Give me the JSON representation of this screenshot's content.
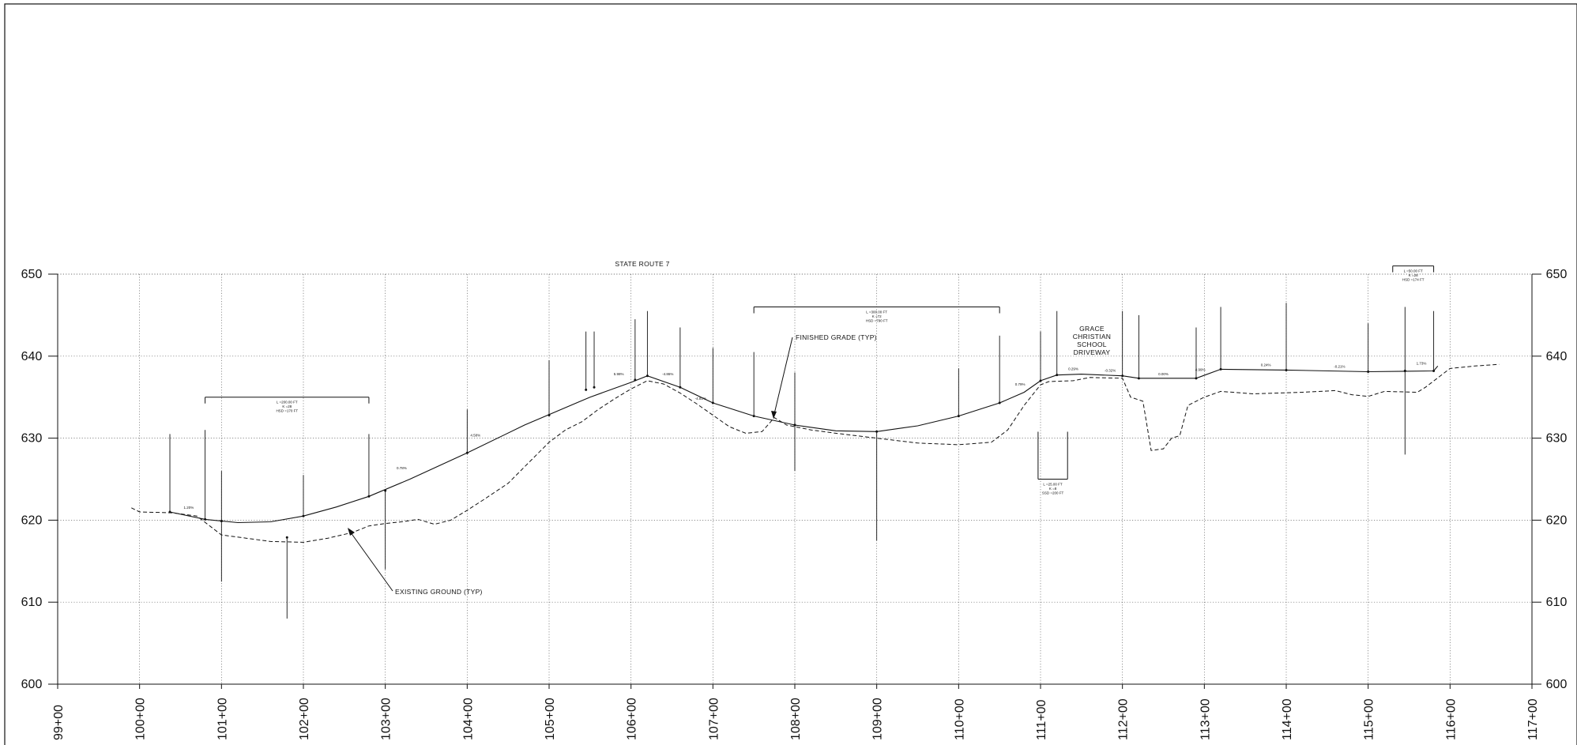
{
  "title": "STATE ROUTE 7",
  "colors": {
    "line": "#111111",
    "grid": "#555555",
    "background": "#ffffff"
  },
  "elevation_labels": [
    "650",
    "640",
    "630",
    "620",
    "610",
    "600"
  ],
  "station_labels": [
    "99+00",
    "100+00",
    "101+00",
    "102+00",
    "103+00",
    "104+00",
    "105+00",
    "106+00",
    "107+00",
    "108+00",
    "109+00",
    "110+00",
    "111+00",
    "112+00",
    "113+00",
    "114+00",
    "115+00",
    "116+00",
    "117+00"
  ],
  "annotations": {
    "finished_grade": "FINISHED GRADE (TYP)",
    "existing_ground": "EXISTING GROUND (TYP)",
    "driveway": [
      "GRACE",
      "CHRISTIAN",
      "SCHOOL",
      "DRIVEWAY"
    ]
  },
  "vertical_curves": [
    {
      "id": "vc-101",
      "text": [
        "L =200.00 FT",
        "K =28",
        "HSD =170 FT"
      ]
    },
    {
      "id": "vc-108",
      "text": [
        "L =300.00 FT",
        "K =72",
        "HSD =790 FT"
      ]
    },
    {
      "id": "vc-111",
      "text": [
        "L =25.00 FT",
        "K =8",
        "SSD =200 FT"
      ]
    },
    {
      "id": "vc-115",
      "text": [
        "L =50.00 FT",
        "K =28",
        "HSD =174 FT"
      ]
    }
  ],
  "grades": [
    "1.20%",
    "0.78%",
    "5.98%",
    "-4.86%",
    "-4.81%",
    "4.58%",
    "0.79%",
    "0.29%",
    "-0.32%",
    "0.00%",
    "4.99%",
    "0.24%",
    "-0.21%",
    "1.73%"
  ],
  "chart_data": {
    "type": "line",
    "title": "STATE ROUTE 7",
    "x_axis": "station (ft)",
    "y_axis": "elevation (ft)",
    "xlim": [
      9900,
      11700
    ],
    "ylim": [
      600,
      650
    ],
    "grid": true,
    "series": [
      {
        "key": "finished-grade",
        "style": "solid",
        "points": [
          [
            10037,
            621.0
          ],
          [
            10080,
            620.1
          ],
          [
            10120,
            619.7
          ],
          [
            10160,
            619.8
          ],
          [
            10200,
            620.5
          ],
          [
            10240,
            621.6
          ],
          [
            10280,
            622.9
          ],
          [
            10330,
            625.0
          ],
          [
            10400,
            628.2
          ],
          [
            10470,
            631.6
          ],
          [
            10550,
            635.0
          ],
          [
            10600,
            636.8
          ],
          [
            10620,
            637.6
          ],
          [
            10660,
            636.2
          ],
          [
            10700,
            634.3
          ],
          [
            10750,
            632.7
          ],
          [
            10800,
            631.6
          ],
          [
            10850,
            630.9
          ],
          [
            10900,
            630.8
          ],
          [
            10950,
            631.5
          ],
          [
            11000,
            632.7
          ],
          [
            11050,
            634.3
          ],
          [
            11080,
            635.6
          ],
          [
            11100,
            637.0
          ],
          [
            11120,
            637.7
          ],
          [
            11150,
            637.8
          ],
          [
            11200,
            637.6
          ],
          [
            11220,
            637.3
          ],
          [
            11290,
            637.3
          ],
          [
            11320,
            638.4
          ],
          [
            11400,
            638.3
          ],
          [
            11500,
            638.1
          ],
          [
            11580,
            638.2
          ],
          [
            11585,
            638.8
          ]
        ]
      },
      {
        "key": "existing-ground",
        "style": "dashed",
        "points": [
          [
            9990,
            621.5
          ],
          [
            10000,
            621.0
          ],
          [
            10040,
            620.9
          ],
          [
            10070,
            620.5
          ],
          [
            10100,
            618.2
          ],
          [
            10130,
            617.8
          ],
          [
            10160,
            617.4
          ],
          [
            10200,
            617.3
          ],
          [
            10230,
            617.8
          ],
          [
            10260,
            618.5
          ],
          [
            10280,
            619.3
          ],
          [
            10300,
            619.6
          ],
          [
            10320,
            619.8
          ],
          [
            10340,
            620.1
          ],
          [
            10360,
            619.5
          ],
          [
            10380,
            620.0
          ],
          [
            10400,
            621.2
          ],
          [
            10420,
            622.5
          ],
          [
            10450,
            624.5
          ],
          [
            10470,
            626.5
          ],
          [
            10490,
            628.5
          ],
          [
            10500,
            629.5
          ],
          [
            10520,
            631.0
          ],
          [
            10540,
            632.0
          ],
          [
            10560,
            633.5
          ],
          [
            10580,
            634.8
          ],
          [
            10600,
            636.0
          ],
          [
            10620,
            637.0
          ],
          [
            10640,
            636.6
          ],
          [
            10660,
            635.5
          ],
          [
            10680,
            634.2
          ],
          [
            10700,
            632.8
          ],
          [
            10720,
            631.4
          ],
          [
            10740,
            630.6
          ],
          [
            10760,
            630.8
          ],
          [
            10775,
            632.5
          ],
          [
            10790,
            631.6
          ],
          [
            10800,
            631.4
          ],
          [
            10820,
            631.0
          ],
          [
            10850,
            630.6
          ],
          [
            10900,
            630.0
          ],
          [
            10950,
            629.4
          ],
          [
            11000,
            629.2
          ],
          [
            11040,
            629.5
          ],
          [
            11060,
            631.0
          ],
          [
            11080,
            634.0
          ],
          [
            11100,
            636.5
          ],
          [
            11110,
            636.9
          ],
          [
            11140,
            637.0
          ],
          [
            11160,
            637.4
          ],
          [
            11200,
            637.3
          ],
          [
            11210,
            635.0
          ],
          [
            11225,
            634.5
          ],
          [
            11235,
            628.5
          ],
          [
            11250,
            628.7
          ],
          [
            11260,
            630.0
          ],
          [
            11270,
            630.3
          ],
          [
            11280,
            634.0
          ],
          [
            11300,
            635.0
          ],
          [
            11320,
            635.7
          ],
          [
            11360,
            635.4
          ],
          [
            11420,
            635.6
          ],
          [
            11460,
            635.8
          ],
          [
            11480,
            635.3
          ],
          [
            11500,
            635.1
          ],
          [
            11520,
            635.7
          ],
          [
            11560,
            635.6
          ],
          [
            11570,
            636.2
          ],
          [
            11600,
            638.5
          ],
          [
            11630,
            638.8
          ],
          [
            11660,
            639.0
          ]
        ]
      }
    ]
  }
}
